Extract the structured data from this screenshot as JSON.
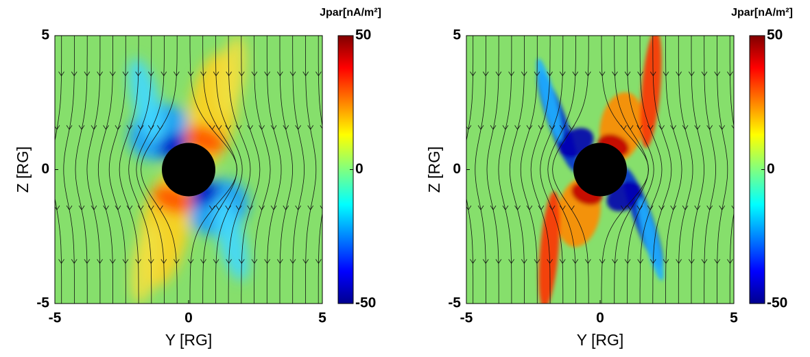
{
  "chart_data": [
    {
      "type": "heatmap",
      "x_label": "Y [RG]",
      "y_label": "Z [RG]",
      "colorbar_label": "Jpar[nA/m²]",
      "xlim": [
        -5,
        5
      ],
      "xticks": [
        -5,
        0,
        5
      ],
      "ylim": [
        -5,
        5
      ],
      "yticks": [
        -5,
        0,
        5
      ],
      "clim": [
        -50,
        50
      ],
      "cticks": [
        -50,
        0,
        50
      ]
    },
    {
      "type": "heatmap",
      "x_label": "Y [RG]",
      "y_label": "Z [RG]",
      "colorbar_label": "Jpar[nA/m²]",
      "xlim": [
        -5,
        5
      ],
      "xticks": [
        -5,
        0,
        5
      ],
      "ylim": [
        -5,
        5
      ],
      "yticks": [
        -5,
        0,
        5
      ],
      "clim": [
        -50,
        50
      ],
      "cticks": [
        -50,
        0,
        50
      ]
    }
  ]
}
